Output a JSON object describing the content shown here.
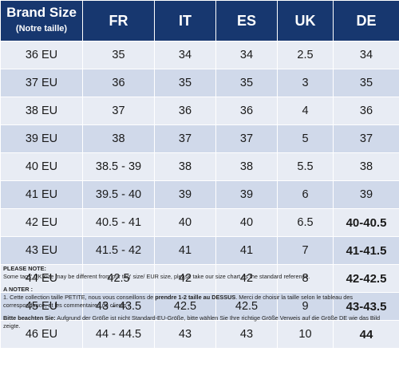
{
  "header": {
    "brand_size": "Brand Size",
    "brand_size_sub": "(Notre taille)",
    "fr": "FR",
    "it": "IT",
    "es": "ES",
    "uk": "UK",
    "de": "DE"
  },
  "rows": [
    {
      "brand": "36 EU",
      "fr": "35",
      "it": "34",
      "es": "34",
      "uk": "2.5",
      "de": "34"
    },
    {
      "brand": "37 EU",
      "fr": "36",
      "it": "35",
      "es": "35",
      "uk": "3",
      "de": "35"
    },
    {
      "brand": "38 EU",
      "fr": "37",
      "it": "36",
      "es": "36",
      "uk": "4",
      "de": "36"
    },
    {
      "brand": "39 EU",
      "fr": "38",
      "it": "37",
      "es": "37",
      "uk": "5",
      "de": "37"
    },
    {
      "brand": "40 EU",
      "fr": "38.5 - 39",
      "it": "38",
      "es": "38",
      "uk": "5.5",
      "de": "38"
    },
    {
      "brand": "41 EU",
      "fr": "39.5 - 40",
      "it": "39",
      "es": "39",
      "uk": "6",
      "de": "39"
    },
    {
      "brand": "42 EU",
      "fr": "40.5 - 41",
      "it": "40",
      "es": "40",
      "uk": "6.5",
      "de": "40-40.5"
    },
    {
      "brand": "43 EU",
      "fr": "41.5 - 42",
      "it": "41",
      "es": "41",
      "uk": "7",
      "de": "41-41.5"
    },
    {
      "brand": "44 EU",
      "fr": "42.5",
      "it": "42",
      "es": "42",
      "uk": "8",
      "de": "42-42.5"
    },
    {
      "brand": "45 EU",
      "fr": "43 - 43.5",
      "it": "42.5",
      "es": "42.5",
      "uk": "9",
      "de": "43-43.5"
    },
    {
      "brand": "46 EU",
      "fr": "44 - 44.5",
      "it": "43",
      "es": "43",
      "uk": "10",
      "de": "44"
    }
  ],
  "notes": {
    "please_note_title": "PLEASE NOTE:",
    "please_note_text": "Some tags' UK size  may be different from our tag' size/ EUR size, please take our size chart as the standard reference.",
    "a_noter_title": "A NOTER :",
    "a_noter_text_1": "1. Cette collection taille PETITE, nous vous conseillons de ",
    "a_noter_bold": "prendre 1-2 taille au DESSUS",
    "a_noter_text_2": ".  Merci de choisir la taille selon le tableau des correspondance, et  les commentaires de clients ;",
    "bitte_title": "Bitte beachten Sie:",
    "bitte_text": " Aufgrund der Größe ist nicht Standard-EU-Größe, bitte wählen Sie Ihre richtige Größe Verweis auf die Größe DE wie das Bild zeigte."
  },
  "colors": {
    "header_bg": "#17376f",
    "row_light": "#e8ecf4",
    "row_dark": "#d0d9ea"
  }
}
